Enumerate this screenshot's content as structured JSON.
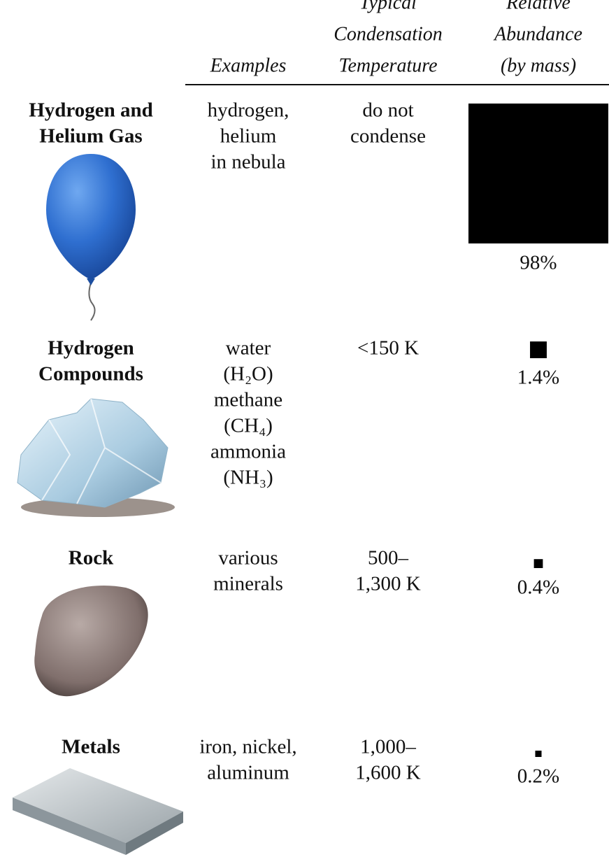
{
  "header": {
    "columns": [
      [
        "Examples"
      ],
      [
        "Typical",
        "Condensation",
        "Temperature"
      ],
      [
        "Relative",
        "Abundance",
        "(by mass)"
      ]
    ]
  },
  "table": {
    "rows": [
      {
        "name": [
          "Hydrogen and",
          "Helium Gas"
        ],
        "examples": [
          "hydrogen,",
          "helium",
          "in nebula"
        ],
        "temperature": [
          "do not",
          "condense"
        ],
        "abundance": {
          "value": 98,
          "label": "98%"
        }
      },
      {
        "name": [
          "Hydrogen",
          "Compounds"
        ],
        "examples": [
          "water",
          "(H₂O)",
          "methane",
          "(CH₄)",
          "ammonia",
          "(NH₃)"
        ],
        "temperature": [
          "<150 K"
        ],
        "abundance": {
          "value": 1.4,
          "label": "1.4%"
        }
      },
      {
        "name": [
          "Rock"
        ],
        "examples": [
          "various",
          "minerals"
        ],
        "temperature": [
          "500–",
          "1,300 K"
        ],
        "abundance": {
          "value": 0.4,
          "label": "0.4%"
        }
      },
      {
        "name": [
          "Metals"
        ],
        "examples": [
          "iron, nickel,",
          "aluminum"
        ],
        "temperature": [
          "1,000–",
          "1,600 K"
        ],
        "abundance": {
          "value": 0.2,
          "label": "0.2%"
        }
      }
    ]
  }
}
